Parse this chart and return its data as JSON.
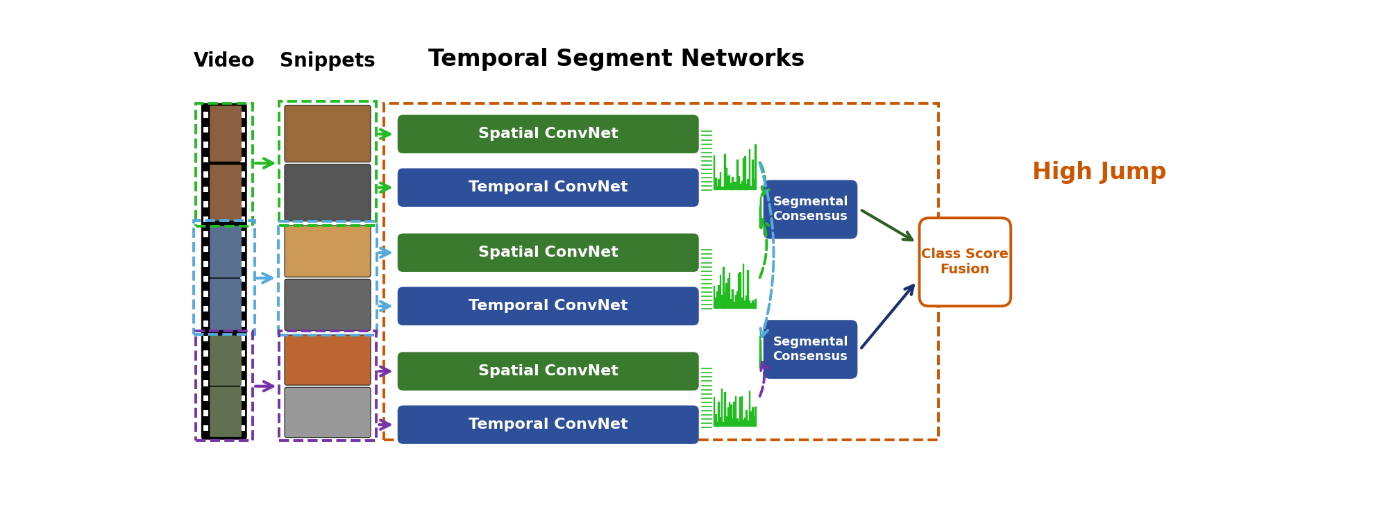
{
  "title": "Temporal Segment Networks",
  "video_label": "Video",
  "snippets_label": "Snippets",
  "high_jump_label": "High Jump",
  "class_score_label": "Class Score\nFusion",
  "segmental_consensus_label": "Segmental\nConsensus",
  "convnet_boxes": [
    {
      "label": "Spatial ConvNet",
      "color": "#3a7a2e"
    },
    {
      "label": "Temporal ConvNet",
      "color": "#2e4f9a"
    },
    {
      "label": "Spatial ConvNet",
      "color": "#3a7a2e"
    },
    {
      "label": "Temporal ConvNet",
      "color": "#2e4f9a"
    },
    {
      "label": "Spatial ConvNet",
      "color": "#3a7a2e"
    },
    {
      "label": "Temporal ConvNet",
      "color": "#2e4f9a"
    }
  ],
  "green_color": "#22bb22",
  "blue_color": "#55aadd",
  "purple_color": "#7733aa",
  "orange_color": "#cc5500",
  "navy_color": "#2e4f9a",
  "sc_color": "#2e4f9a",
  "background": "#ffffff",
  "fig_w": 19.78,
  "fig_h": 7.38,
  "dpi": 100
}
